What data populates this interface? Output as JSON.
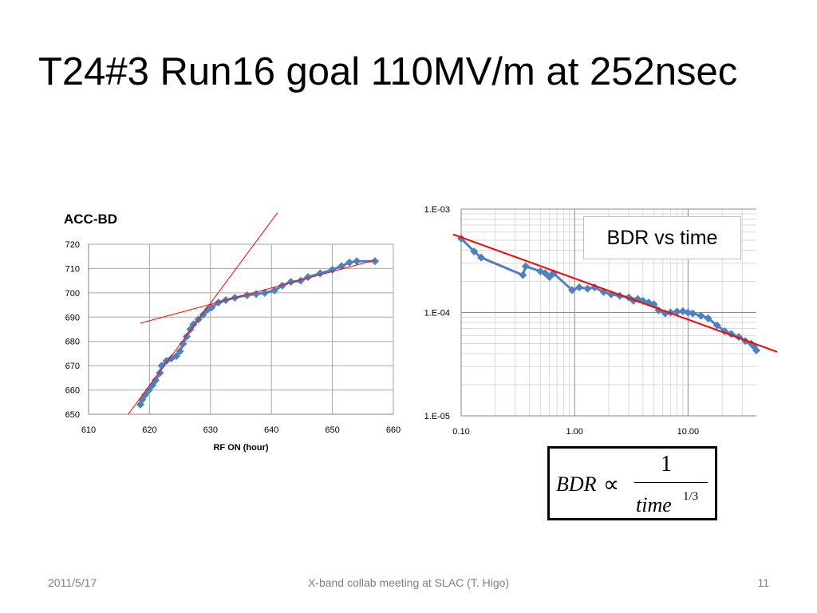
{
  "slide": {
    "title": "T24#3  Run16 goal 110MV/m at 252nsec",
    "footer_date": "2011/5/17",
    "footer_center": "X-band collab meeting at SLAC (T. Higo)",
    "footer_page": "11"
  },
  "legend_box": {
    "text": "BDR vs time"
  },
  "formula": {
    "lhs": "BDR",
    "relation": "∝",
    "numerator": "1",
    "denominator": "time",
    "exponent": "1/3"
  },
  "colors": {
    "series": "#4f81bd",
    "fit": "#ff0000",
    "grid": "#a6a6a6",
    "axis": "#868686"
  },
  "chart_data": [
    {
      "type": "scatter",
      "title": "ACC-BD",
      "xlabel": "RF ON (hour)",
      "ylabel": "",
      "xlim": [
        610,
        660
      ],
      "ylim": [
        650,
        720
      ],
      "xticks": [
        "610",
        "620",
        "630",
        "640",
        "650",
        "660"
      ],
      "yticks": [
        "650",
        "660",
        "670",
        "680",
        "690",
        "700",
        "710",
        "720"
      ],
      "grid": true,
      "series": [
        {
          "points": [
            [
              618.5,
              654
            ],
            [
              618.8,
              656
            ],
            [
              619.3,
              658
            ],
            [
              619.9,
              660
            ],
            [
              620.5,
              662
            ],
            [
              621.0,
              664
            ],
            [
              621.7,
              667
            ],
            [
              622.0,
              670
            ],
            [
              622.8,
              672
            ],
            [
              623.6,
              673
            ],
            [
              624.4,
              674
            ],
            [
              625.0,
              676
            ],
            [
              625.5,
              679
            ],
            [
              626.1,
              682
            ],
            [
              626.7,
              685
            ],
            [
              627.2,
              687
            ],
            [
              628.0,
              689
            ],
            [
              628.8,
              691
            ],
            [
              629.5,
              693
            ],
            [
              630.2,
              694
            ],
            [
              631.3,
              696
            ],
            [
              632.5,
              697
            ],
            [
              634.0,
              698
            ],
            [
              636.0,
              699
            ],
            [
              637.5,
              699.5
            ],
            [
              638.9,
              700
            ],
            [
              640.5,
              701
            ],
            [
              641.8,
              703
            ],
            [
              643.2,
              704.5
            ],
            [
              644.8,
              705
            ],
            [
              646.0,
              706.5
            ],
            [
              648.0,
              708
            ],
            [
              650.0,
              709.5
            ],
            [
              651.5,
              711
            ],
            [
              652.8,
              712.5
            ],
            [
              654.0,
              713
            ],
            [
              657.0,
              713
            ]
          ]
        }
      ],
      "fit_lines": [
        {
          "x": [
            616.5,
            641.0
          ],
          "y": [
            650.0,
            733.0
          ]
        },
        {
          "x": [
            618.5,
            657.0
          ],
          "y": [
            687.5,
            713.5
          ]
        }
      ]
    },
    {
      "type": "line",
      "title": "",
      "xlabel": "",
      "ylabel": "",
      "xscale": "log",
      "yscale": "log",
      "xlim": [
        0.1,
        40
      ],
      "ylim": [
        1e-05,
        0.001
      ],
      "xticks": [
        "0.10",
        "1.00",
        "10.00"
      ],
      "yticks": [
        "1.E-05",
        "1.E-04",
        "1.E-03"
      ],
      "grid": true,
      "series": [
        {
          "points": [
            [
              0.1,
              0.00052
            ],
            [
              0.13,
              0.00039
            ],
            [
              0.15,
              0.00034
            ],
            [
              0.35,
              0.00023
            ],
            [
              0.37,
              0.00028
            ],
            [
              0.5,
              0.00025
            ],
            [
              0.55,
              0.00024
            ],
            [
              0.6,
              0.00022
            ],
            [
              0.65,
              0.00024
            ],
            [
              0.95,
              0.000165
            ],
            [
              1.1,
              0.000175
            ],
            [
              1.3,
              0.00017
            ],
            [
              1.5,
              0.000175
            ],
            [
              1.8,
              0.000158
            ],
            [
              2.1,
              0.00015
            ],
            [
              2.5,
              0.000145
            ],
            [
              3.0,
              0.00014
            ],
            [
              3.3,
              0.00013
            ],
            [
              3.6,
              0.000135
            ],
            [
              4.0,
              0.00013
            ],
            [
              4.5,
              0.000125
            ],
            [
              5.0,
              0.00012
            ],
            [
              5.5,
              0.000105
            ],
            [
              6.3,
              9.8e-05
            ],
            [
              7.0,
              0.0001
            ],
            [
              8.0,
              0.000102
            ],
            [
              9.0,
              0.000103
            ],
            [
              10.0,
              0.0001
            ],
            [
              11.0,
              9.8e-05
            ],
            [
              13.0,
              9.3e-05
            ],
            [
              15.0,
              8.8e-05
            ],
            [
              18.0,
              7.5e-05
            ],
            [
              21.0,
              6.6e-05
            ],
            [
              24.0,
              6.2e-05
            ],
            [
              28.0,
              5.8e-05
            ],
            [
              32.0,
              5.3e-05
            ],
            [
              36.0,
              5e-05
            ],
            [
              38.0,
              4.7e-05
            ],
            [
              40.0,
              4.3e-05
            ]
          ]
        }
      ],
      "fit_lines": [
        {
          "x": [
            0.1,
            40.0
          ],
          "y": [
            0.00053,
            4.8e-05
          ]
        }
      ]
    }
  ]
}
